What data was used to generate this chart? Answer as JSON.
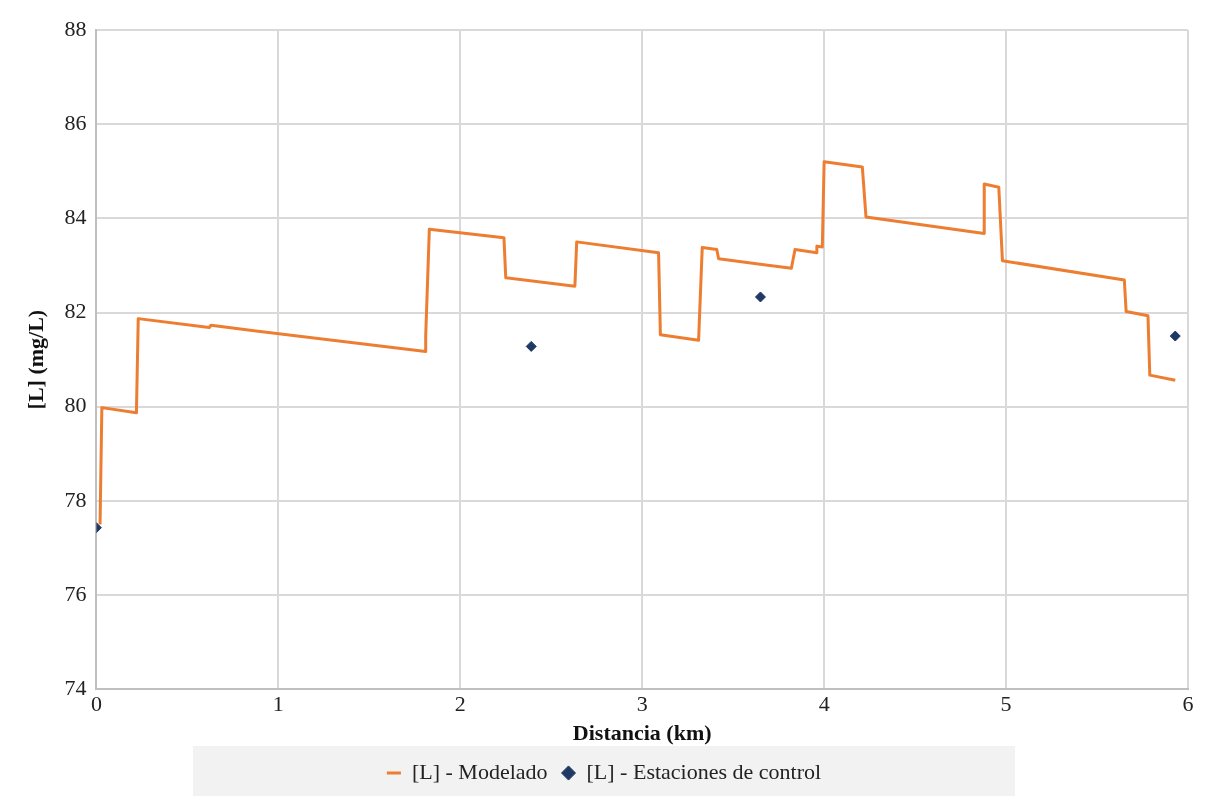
{
  "chart_data": {
    "type": "line",
    "xlabel": "Distancia (km)",
    "ylabel": "[L] (mg/L)",
    "xlim": [
      0,
      6
    ],
    "xticks": [
      0,
      1,
      2,
      3,
      4,
      5,
      6
    ],
    "ylim": [
      74,
      88
    ],
    "yticks": [
      74,
      76,
      78,
      80,
      82,
      84,
      86,
      88
    ],
    "grid": true,
    "legend": "bottom",
    "series": [
      {
        "name": "[L] - Modelado",
        "color": "#ed7d31",
        "marker": "none",
        "line_style": "solid",
        "x": [
          0.02,
          0.03,
          0.22,
          0.23,
          0.62,
          0.63,
          0.77,
          1.81,
          1.81,
          1.83,
          2.24,
          2.25,
          2.63,
          2.64,
          3.09,
          3.1,
          3.31,
          3.33,
          3.41,
          3.42,
          3.82,
          3.84,
          3.96,
          3.96,
          3.99,
          4.0,
          4.21,
          4.23,
          4.88,
          4.88,
          4.96,
          4.98,
          5.65,
          5.66,
          5.78,
          5.79,
          5.93
        ],
        "values": [
          77.5,
          79.98,
          79.87,
          81.87,
          81.68,
          81.73,
          81.66,
          81.17,
          81.5,
          83.77,
          83.59,
          82.74,
          82.56,
          83.5,
          83.27,
          81.53,
          81.41,
          83.38,
          83.34,
          83.14,
          82.94,
          83.34,
          83.27,
          83.41,
          83.39,
          85.2,
          85.09,
          84.03,
          83.68,
          84.73,
          84.66,
          83.1,
          82.69,
          82.02,
          81.93,
          80.67,
          80.56
        ]
      },
      {
        "name": "[L] - Estaciones de control",
        "type": "scatter",
        "color": "#203864",
        "marker": "diamond",
        "x": [
          0,
          2.39,
          3.65,
          5.93
        ],
        "values": [
          77.43,
          81.28,
          82.33,
          81.5
        ]
      }
    ]
  }
}
